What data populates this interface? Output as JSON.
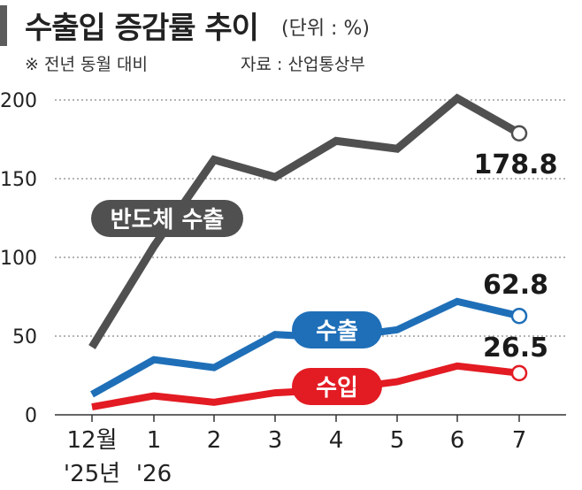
{
  "header": {
    "title": "수출입 증감률 추이",
    "unit": "(단위 : %)",
    "note": "※ 전년 동월 대비",
    "source": "자료 : 산업통상부"
  },
  "colors": {
    "semiconductor": "#505050",
    "exports": "#1f6fb8",
    "imports": "#e31b23",
    "grid": "#888888",
    "axis": "#333333"
  },
  "chart_data": {
    "type": "line",
    "categories": [
      "12월\n'25년",
      "1\n'26",
      "2",
      "3",
      "4",
      "5",
      "6",
      "7"
    ],
    "x_tick_labels": [
      {
        "top": "12월",
        "bottom": "'25년"
      },
      {
        "top": "1",
        "bottom": "'26"
      },
      {
        "top": "2",
        "bottom": ""
      },
      {
        "top": "3",
        "bottom": ""
      },
      {
        "top": "4",
        "bottom": ""
      },
      {
        "top": "5",
        "bottom": ""
      },
      {
        "top": "6",
        "bottom": ""
      },
      {
        "top": "7",
        "bottom": ""
      }
    ],
    "ylim": [
      0,
      200
    ],
    "yticks": [
      0,
      50,
      100,
      150,
      200
    ],
    "grid": "horizontal dotted",
    "series": [
      {
        "key": "semiconductor",
        "name": "반도체 수출",
        "values": [
          43,
          107,
          162,
          151,
          174,
          169,
          201,
          178.8
        ],
        "end_label": "178.8"
      },
      {
        "key": "exports",
        "name": "수출",
        "values": [
          13,
          35,
          30,
          51,
          49,
          54,
          72,
          62.8
        ],
        "end_label": "62.8"
      },
      {
        "key": "imports",
        "name": "수입",
        "values": [
          5,
          12,
          8,
          14,
          16,
          21,
          31,
          26.5
        ],
        "end_label": "26.5"
      }
    ]
  }
}
